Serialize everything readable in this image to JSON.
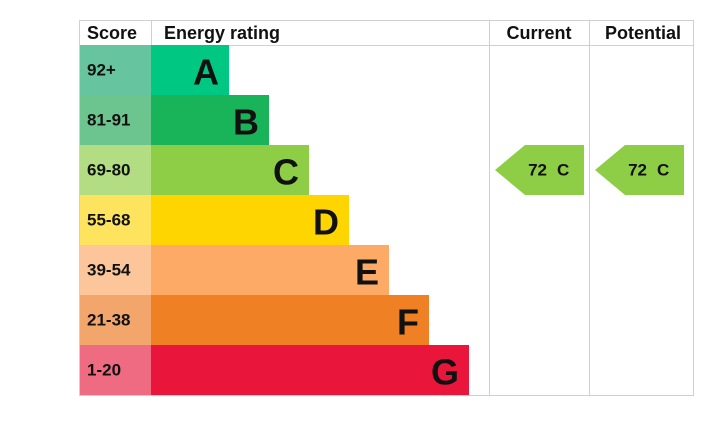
{
  "header": {
    "score": "Score",
    "rating": "Energy rating",
    "current": "Current",
    "potential": "Potential"
  },
  "bands": [
    {
      "score": "92+",
      "letter": "A",
      "color": "#00c781",
      "score_color": "#66c59f"
    },
    {
      "score": "81-91",
      "letter": "B",
      "color": "#19b459",
      "score_color": "#6cc48e"
    },
    {
      "score": "69-80",
      "letter": "C",
      "color": "#8dce46",
      "score_color": "#b2dd82"
    },
    {
      "score": "55-68",
      "letter": "D",
      "color": "#ffd500",
      "score_color": "#fde35e"
    },
    {
      "score": "39-54",
      "letter": "E",
      "color": "#fcaa65",
      "score_color": "#fcc59a"
    },
    {
      "score": "21-38",
      "letter": "F",
      "color": "#ef8023",
      "score_color": "#f3a66b"
    },
    {
      "score": "1-20",
      "letter": "G",
      "color": "#e9153b",
      "score_color": "#ee6b82"
    }
  ],
  "current": {
    "score": 72,
    "letter": "C",
    "band": 2,
    "color": "#8dce46"
  },
  "potential": {
    "score": 72,
    "letter": "C",
    "band": 2,
    "color": "#8dce46"
  }
}
